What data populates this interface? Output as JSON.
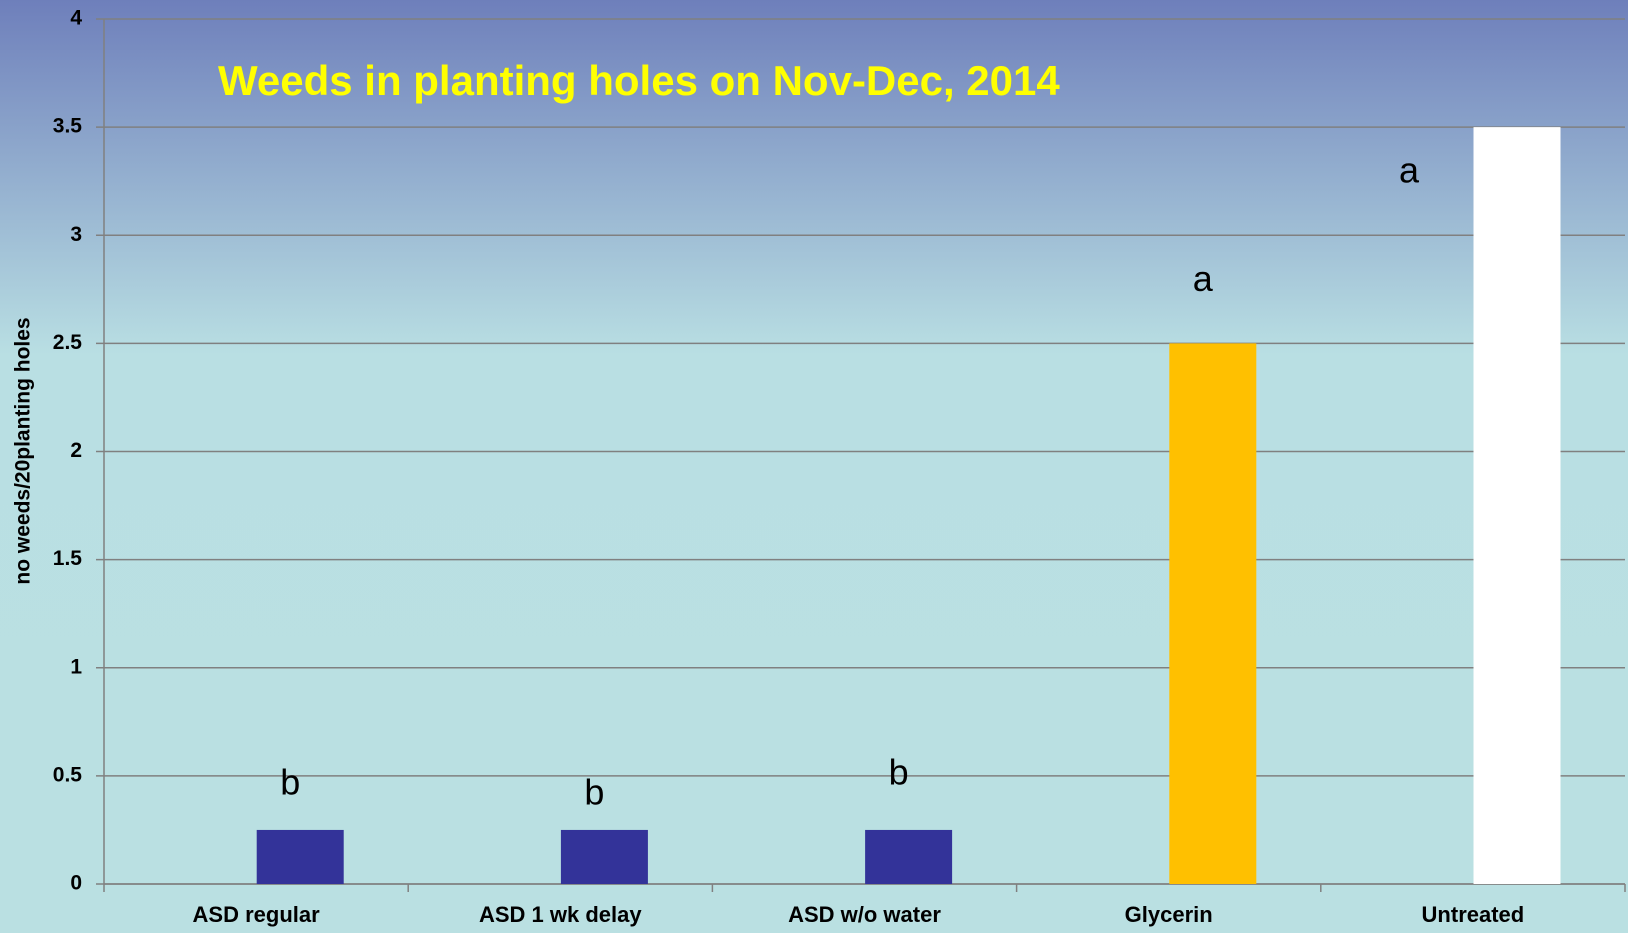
{
  "chart_data": {
    "type": "bar",
    "title": "Weeds in planting holes on Nov-Dec, 2014",
    "y_label": "no weeds/20planting holes",
    "categories": [
      "ASD regular",
      "ASD 1 wk delay",
      "ASD w/o water",
      "Glycerin",
      "Untreated"
    ],
    "values": [
      0.25,
      0.25,
      0.25,
      2.5,
      3.5
    ],
    "colors": [
      "#333399",
      "#333399",
      "#333399",
      "#ffc000",
      "#ffffff"
    ],
    "annotations": [
      "b",
      "b",
      "b",
      "a",
      "a"
    ],
    "ylim": [
      0,
      4
    ],
    "yticks": [
      0,
      0.5,
      1,
      1.5,
      2,
      2.5,
      3,
      3.5,
      4
    ],
    "grid": true
  }
}
